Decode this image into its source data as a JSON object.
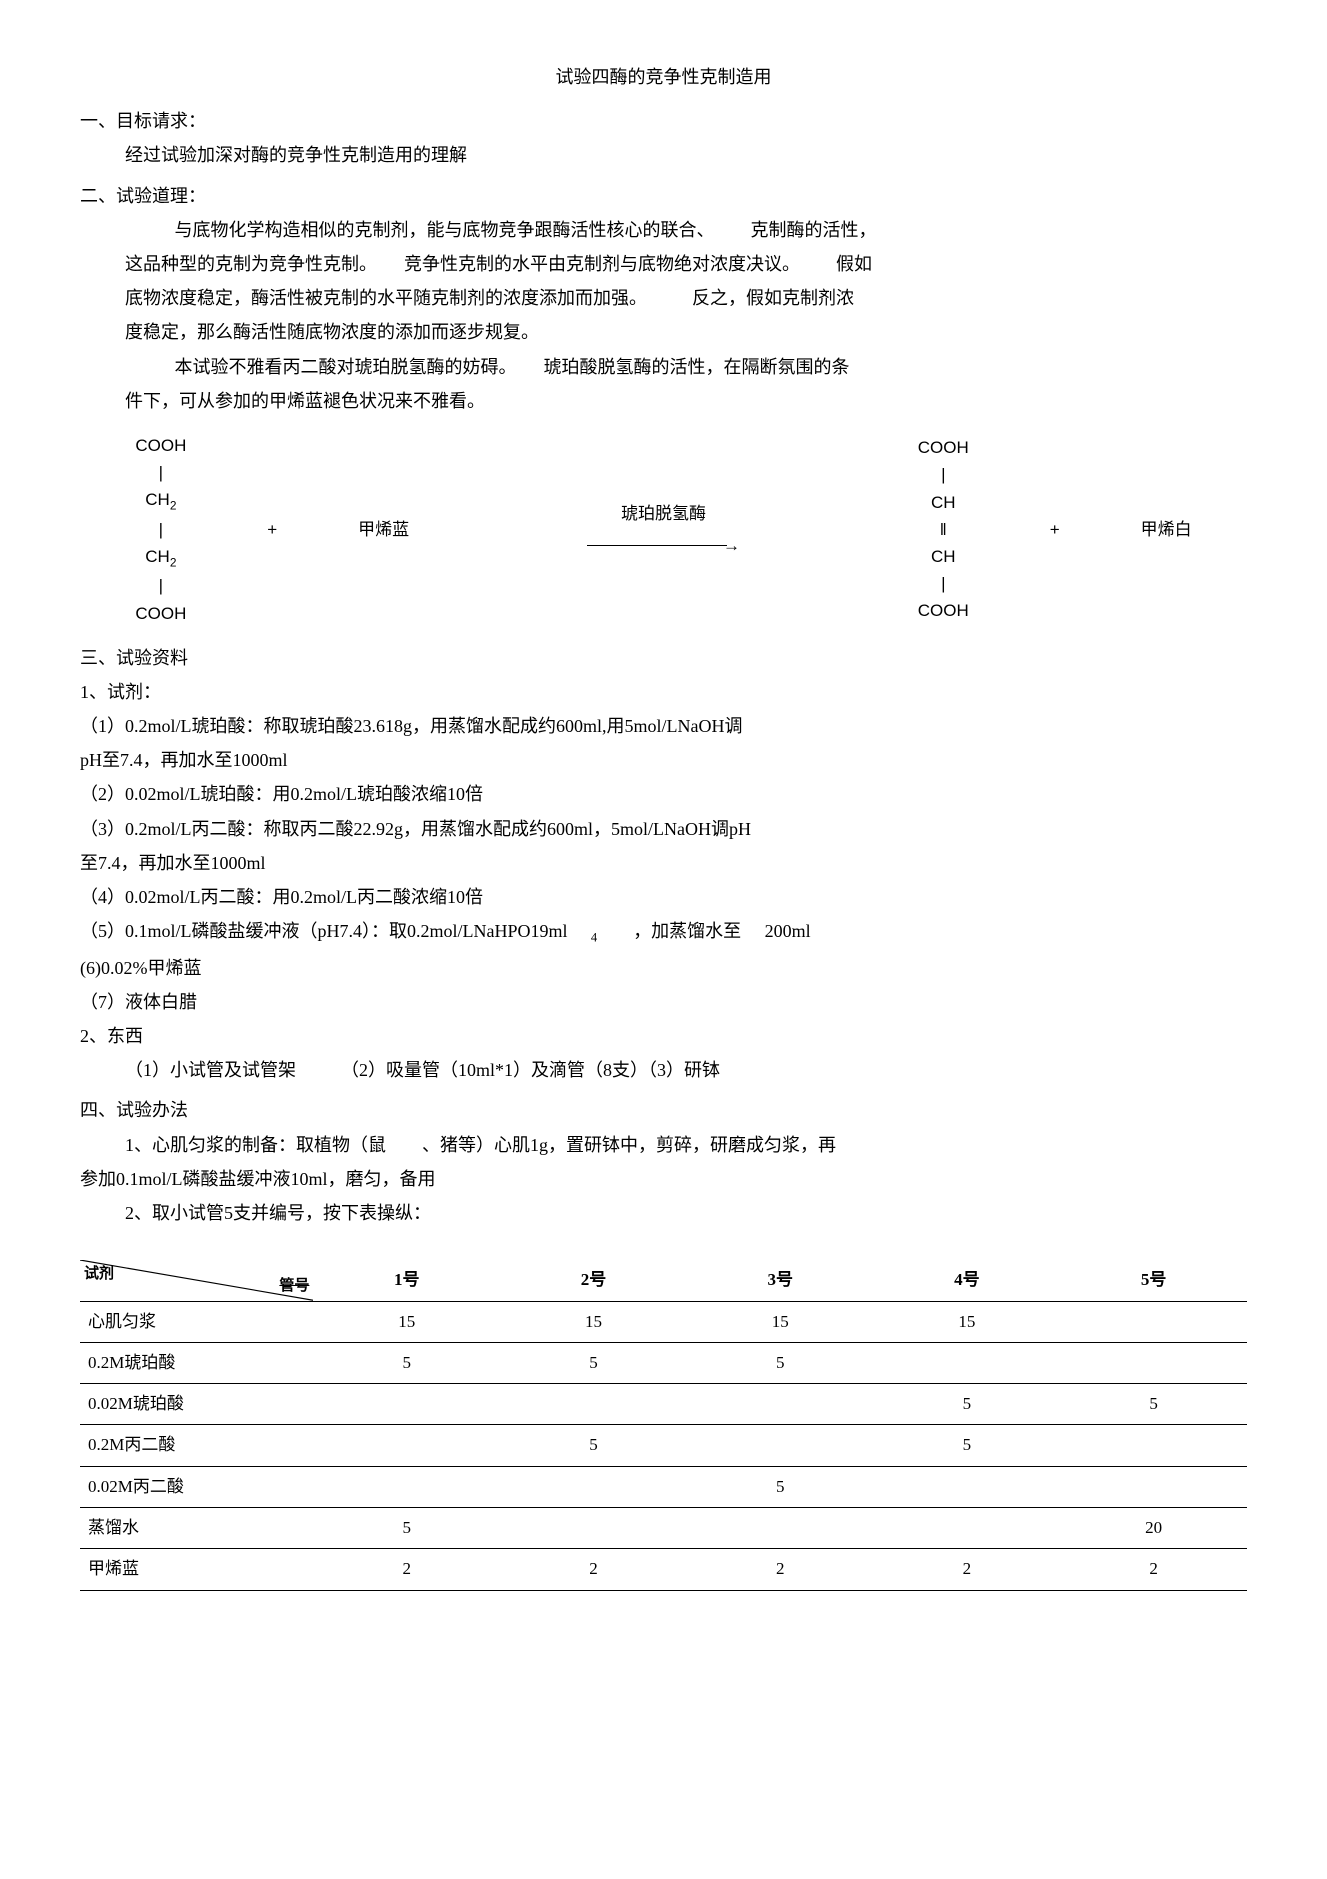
{
  "title": "试验四酶的竞争性克制造用",
  "sec1": {
    "heading": "一、目标请求：",
    "body": "经过试验加深对酶的竞争性克制造用的理解"
  },
  "sec2": {
    "heading": "二、试验道理：",
    "p1a": "与底物化学构造相似的克制剂，能与底物竞争跟酶活性核心的联合、",
    "p1b": "克制酶的活性，",
    "p1c": "这品种型的克制为竞争性克制。",
    "p1d": "竞争性克制的水平由克制剂与底物绝对浓度决议。",
    "p1e": "假如",
    "p1f": "底物浓度稳定，酶活性被克制的水平随克制剂的浓度添加而加强。",
    "p1g": "反之，假如克制剂浓",
    "p1h": "度稳定，那么酶活性随底物浓度的添加而逐步规复。",
    "p2a": "本试验不雅看丙二酸对琥珀脱氢酶的妨碍。",
    "p2b": "琥珀酸脱氢酶的活性，在隔断氛围的条",
    "p2c": "件下，可从参加的甲烯蓝褪色状况来不雅看。"
  },
  "equation": {
    "left": {
      "l1": "COOH",
      "l2": "|",
      "l3": "CH",
      "l3sub": "2",
      "l4": "|",
      "l5": "CH",
      "l5sub": "2",
      "l6": "|",
      "l7": "COOH"
    },
    "plus1": "+",
    "mid1": "甲烯蓝",
    "arrowTop": "琥珀脱氢酶",
    "right": {
      "l1": "COOH",
      "l2": "|",
      "l3": "CH",
      "l4": "‖",
      "l5": "CH",
      "l6": "|",
      "l7": "COOH"
    },
    "plus2": "+",
    "mid2": "甲烯白"
  },
  "sec3": {
    "heading": "三、试验资料",
    "reagentHead": "1、试剂：",
    "r1": "（1）0.2mol/L琥珀酸：称取琥珀酸23.618g，用蒸馏水配成约600ml,用5mol/LNaOH调",
    "r1b": "pH至7.4，再加水至1000ml",
    "r2": "（2）0.02mol/L琥珀酸：用0.2mol/L琥珀酸浓缩10倍",
    "r3": "（3）0.2mol/L丙二酸：称取丙二酸22.92g，用蒸馏水配成约600ml，5mol/LNaOH调pH",
    "r3b": "至7.4，再加水至1000ml",
    "r4": "（4）0.02mol/L丙二酸：用0.2mol/L丙二酸浓缩10倍",
    "r5a": "（5）0.1mol/L磷酸盐缓冲液（pH7.4）：取0.2mol/LNaHPO19ml",
    "r5sub": "4",
    "r5b": "，加蒸馏水至",
    "r5c": "200ml",
    "r6": "(6)0.02%甲烯蓝",
    "r7": "（7）液体白腊",
    "toolHead": "2、东西",
    "tool1": "（1）小试管及试管架",
    "tool2": "（2）吸量管（10ml*1）及滴管（8支）（3）研钵"
  },
  "sec4": {
    "heading": "四、试验办法",
    "m1a": "1、心肌匀浆的制备：取植物（鼠",
    "m1b": "、猪等）心肌1g，置研钵中，剪碎，研磨成匀浆，再",
    "m1c": "参加0.1mol/L磷酸盐缓冲液10ml，磨匀，备用",
    "m2": "2、取小试管5支并编号，按下表操纵："
  },
  "table": {
    "cornerA": "试剂",
    "cornerB": "管号",
    "cols": [
      "1号",
      "2号",
      "3号",
      "4号",
      "5号"
    ],
    "rows": [
      {
        "label": "心肌匀浆",
        "v": [
          "15",
          "15",
          "15",
          "15",
          ""
        ]
      },
      {
        "label": "0.2M琥珀酸",
        "v": [
          "5",
          "5",
          "5",
          "",
          ""
        ]
      },
      {
        "label": "0.02M琥珀酸",
        "v": [
          "",
          "",
          "",
          "5",
          "5"
        ]
      },
      {
        "label": "0.2M丙二酸",
        "v": [
          "",
          "5",
          "",
          "5",
          ""
        ]
      },
      {
        "label": "0.02M丙二酸",
        "v": [
          "",
          "",
          "5",
          "",
          ""
        ]
      },
      {
        "label": "蒸馏水",
        "v": [
          "5",
          "",
          "",
          "",
          "20"
        ]
      },
      {
        "label": "甲烯蓝",
        "v": [
          "2",
          "2",
          "2",
          "2",
          "2"
        ]
      }
    ]
  }
}
